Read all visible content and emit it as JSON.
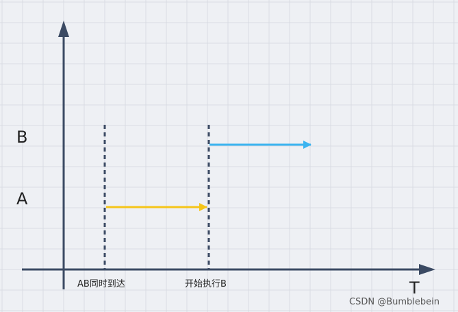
{
  "diagram": {
    "row_labels": {
      "b": "B",
      "a": "A"
    },
    "time_axis_label": "T",
    "events": [
      {
        "label": "AB同时到达"
      },
      {
        "label": "开始执行B"
      }
    ],
    "arrows": [
      {
        "name": "process-a-arrow",
        "color": "#f5c518"
      },
      {
        "name": "process-b-arrow",
        "color": "#3cb4f0"
      }
    ],
    "axis_color": "#3b4a63",
    "grid_color": "#d9dce3",
    "background_color": "#eef0f4"
  },
  "watermark": "CSDN @Bumblebein"
}
